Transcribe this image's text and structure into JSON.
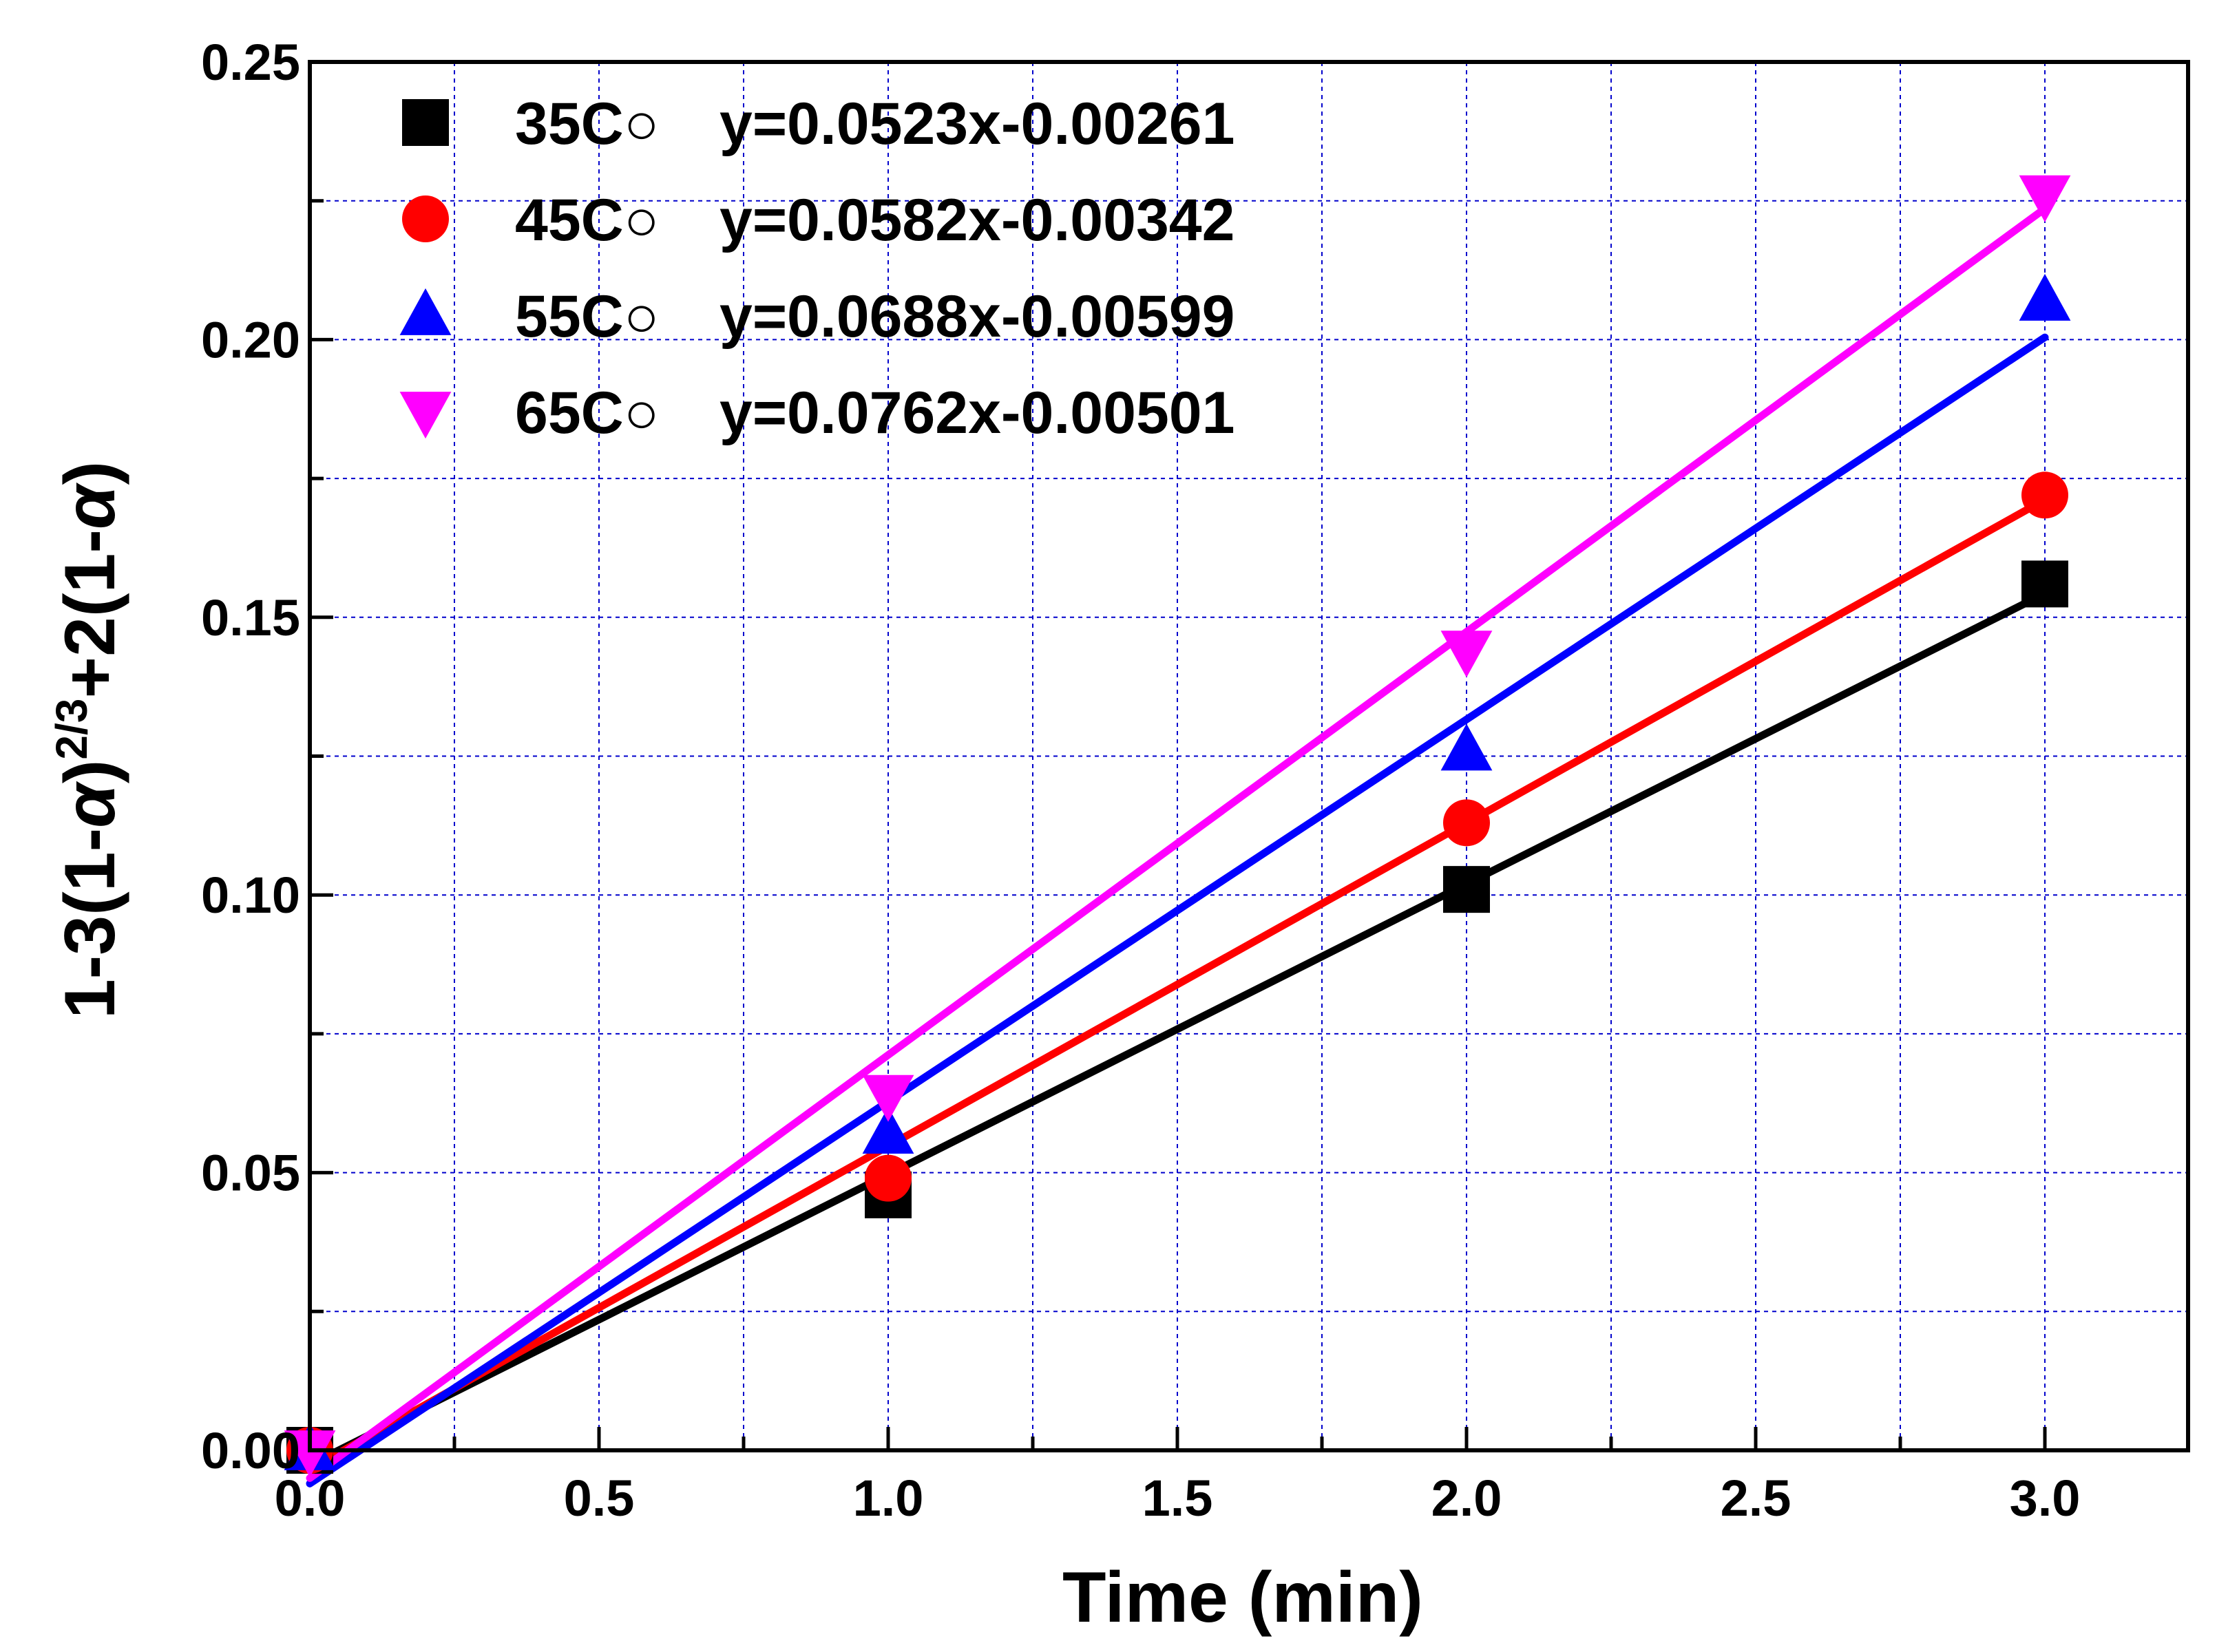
{
  "chart_data": {
    "type": "scatter",
    "title": "",
    "xlabel": "Time (min)",
    "ylabel_parts": {
      "pre": "1-3(1-",
      "alpha1": "α",
      "mid": ")",
      "exp": "2/3",
      "post": "+2(1-",
      "alpha2": "α",
      "end": ")"
    },
    "xlim": [
      0,
      3.2
    ],
    "ylim": [
      0,
      0.25
    ],
    "x_ticks": [
      {
        "value": 0.0,
        "label": "0.0"
      },
      {
        "value": 0.5,
        "label": "0.5"
      },
      {
        "value": 1.0,
        "label": "1.0"
      },
      {
        "value": 1.5,
        "label": "1.5"
      },
      {
        "value": 2.0,
        "label": "2.0"
      },
      {
        "value": 2.5,
        "label": "2.5"
      },
      {
        "value": 3.0,
        "label": "3.0"
      }
    ],
    "y_ticks": [
      {
        "value": 0.0,
        "label": "0.00"
      },
      {
        "value": 0.05,
        "label": "0.05"
      },
      {
        "value": 0.1,
        "label": "0.10"
      },
      {
        "value": 0.15,
        "label": "0.15"
      },
      {
        "value": 0.2,
        "label": "0.20"
      },
      {
        "value": 0.25,
        "label": "0.25"
      }
    ],
    "x_minor_step": 0.25,
    "y_minor_step": 0.025,
    "grid": true,
    "legend_position": "top-left",
    "series": [
      {
        "name": "35C°",
        "label": "35C○",
        "equation": "y=0.0523x-0.00261",
        "color": "#000000",
        "marker": "square",
        "x": [
          0,
          1,
          2,
          3
        ],
        "y": [
          0.0,
          0.046,
          0.101,
          0.156
        ],
        "fit": {
          "slope": 0.0523,
          "intercept": -0.00261
        }
      },
      {
        "name": "45C°",
        "label": "45C○",
        "equation": "y=0.0582x-0.00342",
        "color": "#ff0000",
        "marker": "circle",
        "x": [
          0,
          1,
          2,
          3
        ],
        "y": [
          0.0,
          0.049,
          0.113,
          0.172
        ],
        "fit": {
          "slope": 0.0582,
          "intercept": -0.00342
        }
      },
      {
        "name": "55C°",
        "label": "55C○",
        "equation": "y=0.0688x-0.00599",
        "color": "#0000ff",
        "marker": "triangle-up",
        "x": [
          0,
          1,
          2,
          3
        ],
        "y": [
          0.0,
          0.057,
          0.126,
          0.207
        ],
        "fit": {
          "slope": 0.0688,
          "intercept": -0.00599
        }
      },
      {
        "name": "65C°",
        "label": "65C○",
        "equation": "y=0.0762x-0.00501",
        "color": "#ff00ff",
        "marker": "triangle-down",
        "x": [
          0,
          1,
          2,
          3
        ],
        "y": [
          0.0,
          0.064,
          0.144,
          0.226
        ],
        "fit": {
          "slope": 0.0762,
          "intercept": -0.00501
        }
      }
    ]
  }
}
